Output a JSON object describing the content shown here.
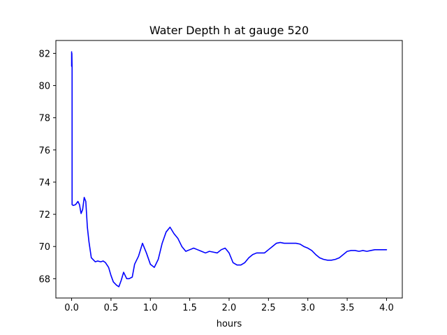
{
  "chart_data": {
    "type": "line",
    "title": "Water Depth h at gauge 520",
    "xlabel": "hours",
    "ylabel": "",
    "xlim": [
      -0.2,
      4.2
    ],
    "ylim": [
      66.8,
      82.8
    ],
    "xticks": [
      "0.0",
      "0.5",
      "1.0",
      "1.5",
      "2.0",
      "2.5",
      "3.0",
      "3.5",
      "4.0"
    ],
    "xtick_values": [
      0,
      0.5,
      1.0,
      1.5,
      2.0,
      2.5,
      3.0,
      3.5,
      4.0
    ],
    "yticks": [
      "68",
      "70",
      "72",
      "74",
      "76",
      "78",
      "80",
      "82"
    ],
    "ytick_values": [
      68,
      70,
      72,
      74,
      76,
      78,
      80,
      82
    ],
    "grid": false,
    "legend": "none",
    "series": [
      {
        "color": "#0000ff",
        "x": [
          0.0,
          0.0,
          0.003,
          0.006,
          0.006,
          0.02,
          0.05,
          0.08,
          0.1,
          0.12,
          0.14,
          0.16,
          0.18,
          0.2,
          0.22,
          0.25,
          0.3,
          0.33,
          0.37,
          0.4,
          0.43,
          0.47,
          0.5,
          0.53,
          0.57,
          0.6,
          0.63,
          0.66,
          0.7,
          0.73,
          0.77,
          0.8,
          0.85,
          0.9,
          0.95,
          1.0,
          1.05,
          1.1,
          1.15,
          1.2,
          1.25,
          1.3,
          1.35,
          1.4,
          1.45,
          1.5,
          1.55,
          1.6,
          1.65,
          1.7,
          1.75,
          1.8,
          1.85,
          1.9,
          1.95,
          2.0,
          2.05,
          2.1,
          2.15,
          2.2,
          2.25,
          2.3,
          2.35,
          2.4,
          2.45,
          2.5,
          2.55,
          2.6,
          2.65,
          2.7,
          2.75,
          2.8,
          2.85,
          2.9,
          2.95,
          3.0,
          3.05,
          3.1,
          3.15,
          3.2,
          3.25,
          3.3,
          3.35,
          3.4,
          3.45,
          3.5,
          3.55,
          3.6,
          3.65,
          3.7,
          3.75,
          3.8,
          3.85,
          3.9,
          3.95,
          4.0
        ],
        "y": [
          82.1,
          81.2,
          82.0,
          81.1,
          72.6,
          72.55,
          72.6,
          72.8,
          72.6,
          72.05,
          72.3,
          73.05,
          72.8,
          71.2,
          70.3,
          69.3,
          69.05,
          69.1,
          69.05,
          69.1,
          69.0,
          68.7,
          68.2,
          67.8,
          67.6,
          67.5,
          67.9,
          68.4,
          68.0,
          68.0,
          68.1,
          68.9,
          69.4,
          70.2,
          69.6,
          68.9,
          68.7,
          69.2,
          70.2,
          70.9,
          71.2,
          70.8,
          70.5,
          70.0,
          69.7,
          69.8,
          69.9,
          69.8,
          69.7,
          69.6,
          69.7,
          69.65,
          69.6,
          69.8,
          69.9,
          69.6,
          69.0,
          68.85,
          68.85,
          69.0,
          69.3,
          69.5,
          69.6,
          69.6,
          69.6,
          69.8,
          70.0,
          70.2,
          70.25,
          70.2,
          70.2,
          70.2,
          70.2,
          70.15,
          70.0,
          69.9,
          69.75,
          69.5,
          69.3,
          69.2,
          69.15,
          69.15,
          69.2,
          69.3,
          69.5,
          69.7,
          69.75,
          69.75,
          69.7,
          69.75,
          69.7,
          69.75,
          69.8,
          69.8,
          69.8,
          69.8
        ]
      }
    ]
  }
}
